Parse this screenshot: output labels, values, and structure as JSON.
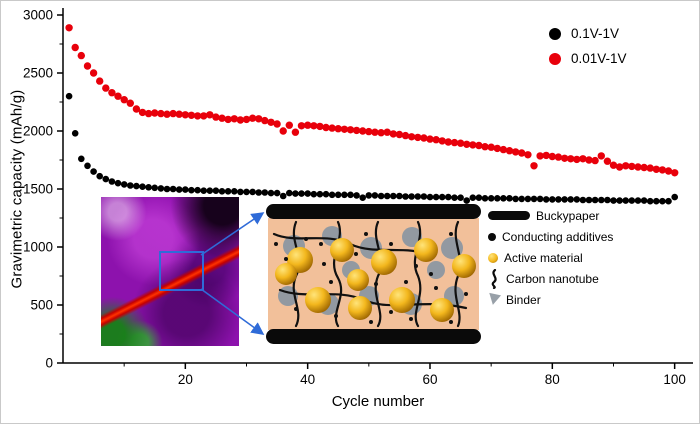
{
  "figure": {
    "legend": [
      {
        "label": "0.1V-1V",
        "color": "#000000",
        "marker": "circle"
      },
      {
        "label": "0.01V-1V",
        "color": "#e8000b",
        "marker": "circle"
      }
    ]
  },
  "chart_data": {
    "type": "scatter",
    "title": "",
    "xlabel": "Cycle number",
    "ylabel": "Gravimetric capacity (mAh/g)",
    "xlim": [
      0,
      103
    ],
    "ylim": [
      0,
      3000
    ],
    "x_ticks": [
      20,
      40,
      60,
      80,
      100
    ],
    "x_minor_ticks": [
      10,
      30,
      50,
      70,
      90
    ],
    "y_ticks": [
      0,
      500,
      1000,
      1500,
      2000,
      2500,
      3000
    ],
    "y_minor_ticks": [
      250,
      750,
      1250,
      1750,
      2250,
      2750
    ],
    "grid": false,
    "legend_position": "top-right",
    "series": [
      {
        "name": "0.1V-1V",
        "color": "#000000",
        "marker_size": 3.3,
        "x": [
          1,
          2,
          3,
          4,
          5,
          6,
          7,
          8,
          9,
          10,
          11,
          12,
          13,
          14,
          15,
          16,
          17,
          18,
          19,
          20,
          21,
          22,
          23,
          24,
          25,
          26,
          27,
          28,
          29,
          30,
          31,
          32,
          33,
          34,
          35,
          36,
          37,
          38,
          39,
          40,
          41,
          42,
          43,
          44,
          45,
          46,
          47,
          48,
          49,
          50,
          51,
          52,
          53,
          54,
          55,
          56,
          57,
          58,
          59,
          60,
          61,
          62,
          63,
          64,
          65,
          66,
          67,
          68,
          69,
          70,
          71,
          72,
          73,
          74,
          75,
          76,
          77,
          78,
          79,
          80,
          81,
          82,
          83,
          84,
          85,
          86,
          87,
          88,
          89,
          90,
          91,
          92,
          93,
          94,
          95,
          96,
          97,
          98,
          99,
          100
        ],
        "y": [
          2300,
          1980,
          1760,
          1700,
          1650,
          1610,
          1585,
          1565,
          1550,
          1540,
          1530,
          1525,
          1520,
          1515,
          1510,
          1505,
          1500,
          1500,
          1495,
          1495,
          1490,
          1490,
          1485,
          1485,
          1485,
          1480,
          1480,
          1480,
          1475,
          1475,
          1475,
          1470,
          1470,
          1465,
          1465,
          1440,
          1465,
          1460,
          1460,
          1460,
          1455,
          1455,
          1455,
          1450,
          1450,
          1450,
          1450,
          1445,
          1425,
          1445,
          1445,
          1440,
          1440,
          1440,
          1440,
          1435,
          1435,
          1435,
          1435,
          1430,
          1430,
          1430,
          1430,
          1425,
          1425,
          1400,
          1425,
          1425,
          1420,
          1420,
          1420,
          1420,
          1420,
          1415,
          1415,
          1415,
          1415,
          1415,
          1410,
          1410,
          1410,
          1410,
          1410,
          1410,
          1405,
          1405,
          1405,
          1405,
          1405,
          1400,
          1400,
          1400,
          1400,
          1400,
          1400,
          1395,
          1395,
          1395,
          1395,
          1430
        ]
      },
      {
        "name": "0.01V-1V",
        "color": "#e8000b",
        "marker_size": 3.7,
        "x": [
          1,
          2,
          3,
          4,
          5,
          6,
          7,
          8,
          9,
          10,
          11,
          12,
          13,
          14,
          15,
          16,
          17,
          18,
          19,
          20,
          21,
          22,
          23,
          24,
          25,
          26,
          27,
          28,
          29,
          30,
          31,
          32,
          33,
          34,
          35,
          36,
          37,
          38,
          39,
          40,
          41,
          42,
          43,
          44,
          45,
          46,
          47,
          48,
          49,
          50,
          51,
          52,
          53,
          54,
          55,
          56,
          57,
          58,
          59,
          60,
          61,
          62,
          63,
          64,
          65,
          66,
          67,
          68,
          69,
          70,
          71,
          72,
          73,
          74,
          75,
          76,
          77,
          78,
          79,
          80,
          81,
          82,
          83,
          84,
          85,
          86,
          87,
          88,
          89,
          90,
          91,
          92,
          93,
          94,
          95,
          96,
          97,
          98,
          99,
          100
        ],
        "y": [
          2890,
          2720,
          2650,
          2560,
          2500,
          2430,
          2370,
          2330,
          2300,
          2270,
          2240,
          2190,
          2160,
          2150,
          2155,
          2150,
          2145,
          2150,
          2145,
          2140,
          2135,
          2130,
          2130,
          2140,
          2120,
          2110,
          2100,
          2105,
          2095,
          2100,
          2110,
          2105,
          2090,
          2075,
          2060,
          2000,
          2050,
          1990,
          2045,
          2050,
          2045,
          2040,
          2030,
          2025,
          2020,
          2015,
          2010,
          2005,
          2000,
          1995,
          1990,
          1985,
          1990,
          1975,
          1970,
          1960,
          1950,
          1945,
          1940,
          1930,
          1925,
          1915,
          1905,
          1900,
          1895,
          1885,
          1880,
          1875,
          1865,
          1860,
          1850,
          1840,
          1830,
          1820,
          1810,
          1795,
          1700,
          1785,
          1790,
          1780,
          1775,
          1765,
          1760,
          1755,
          1760,
          1750,
          1745,
          1785,
          1740,
          1705,
          1690,
          1700,
          1695,
          1690,
          1685,
          1680,
          1670,
          1665,
          1655,
          1640
        ]
      }
    ]
  },
  "inset": {
    "microscopy": {
      "description": "purple microscopy image with red diagonal band and blue selection rectangle",
      "selection_color": "#2f6bd8",
      "band_color": "#ff3300",
      "base_color": "#8d12ad"
    },
    "schematic_legend": [
      {
        "icon": "buckypaper-icon",
        "label": "Buckypaper",
        "color": "#0a0a0a"
      },
      {
        "icon": "conducting-additives-icon",
        "label": "Conducting additives",
        "color": "#0a0a0a"
      },
      {
        "icon": "active-material-icon",
        "label": "Active material",
        "color": "#f3b71d"
      },
      {
        "icon": "carbon-nanotube-icon",
        "label": "Carbon nanotube",
        "color": "#0a0a0a"
      },
      {
        "icon": "binder-icon",
        "label": "Binder",
        "color": "#98a0a8"
      }
    ]
  }
}
